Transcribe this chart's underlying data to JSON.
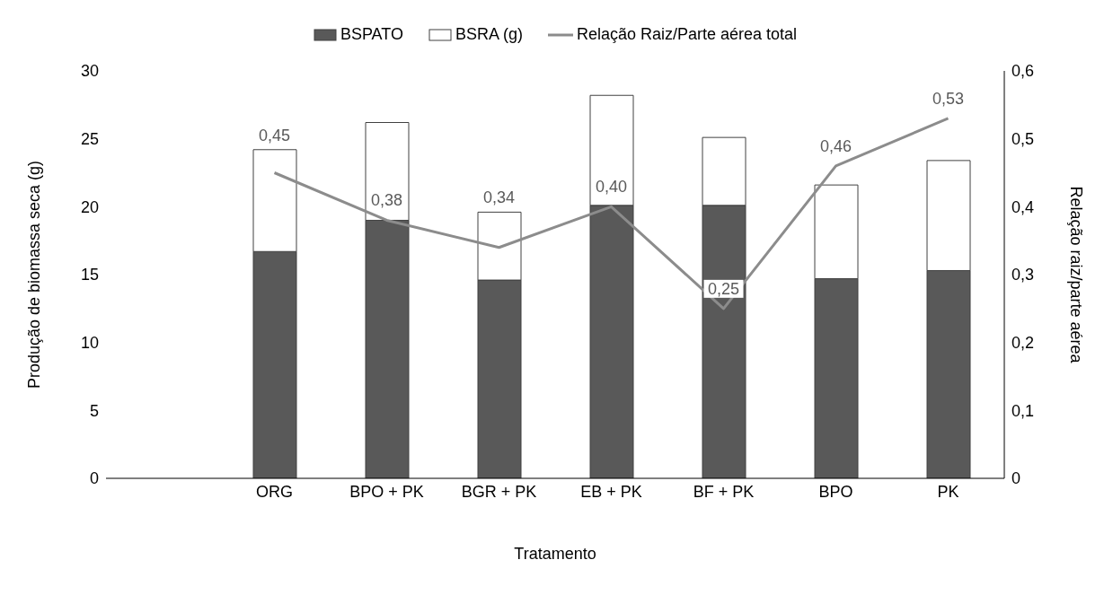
{
  "chart_data": {
    "type": "bar",
    "stacked": true,
    "xlabel": "Tratamento",
    "ylabel": "Produção de biomassa seca (g)",
    "y2label": "Relação raiz/parte aérea",
    "categories": [
      null,
      "ORG",
      "BPO + PK",
      "BGR + PK",
      "EB + PK",
      "BF + PK",
      "BPO",
      "PK"
    ],
    "series": [
      {
        "name": "BSPATO",
        "color": "#595959",
        "values": [
          null,
          16.7,
          19.0,
          14.6,
          20.1,
          20.1,
          14.7,
          15.3
        ]
      },
      {
        "name": "BSRA (g)",
        "color": "#ffffff",
        "values": [
          null,
          7.5,
          7.2,
          5.0,
          8.1,
          5.0,
          6.9,
          8.1
        ]
      },
      {
        "name": "Relação Raiz/Parte aérea total",
        "type": "line",
        "axis": "y2",
        "color": "#8c8c8c",
        "values": [
          null,
          0.45,
          0.38,
          0.34,
          0.4,
          0.25,
          0.46,
          0.53
        ],
        "value_labels": [
          null,
          "0,45",
          "0,38",
          "0,34",
          "0,40",
          "0,25",
          "0,46",
          "0,53"
        ]
      }
    ],
    "ylim": [
      0,
      30
    ],
    "yticks": [
      0,
      5,
      10,
      15,
      20,
      25,
      30
    ],
    "y2lim": [
      0,
      0.6
    ],
    "y2ticks": [
      0,
      {
        "value": 0.1,
        "label": "0,1"
      },
      {
        "value": 0.2,
        "label": "0,2"
      },
      {
        "value": 0.3,
        "label": "0,3"
      },
      {
        "value": 0.4,
        "label": "0,4"
      },
      {
        "value": 0.5,
        "label": "0,5"
      },
      {
        "value": 0.6,
        "label": "0,6"
      }
    ],
    "grid": false,
    "legend": "top",
    "marker": "none"
  }
}
